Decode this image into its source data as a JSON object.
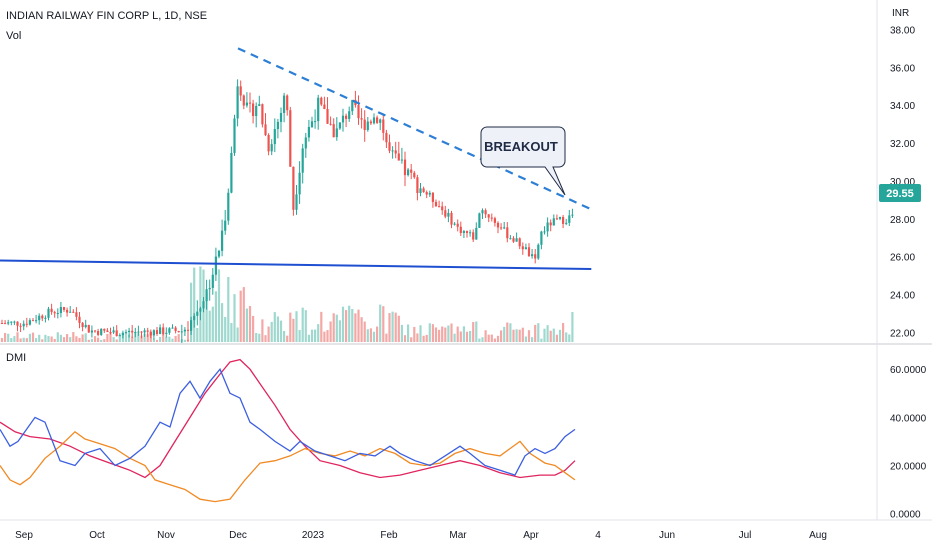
{
  "header": {
    "symbol": "INDIAN RAILWAY FIN CORP L, 1D, NSE",
    "volume_label": "Vol",
    "currency": "INR",
    "indicator_label": "DMI"
  },
  "colors": {
    "up": "#26a69a",
    "down": "#ef5350",
    "trendline": "#2d7fd5",
    "support": "#1e4fd1",
    "di_plus": "#3b5fe0",
    "di_minus": "#f08a24",
    "adx": "#e0245e",
    "price_badge": "#26a69a"
  },
  "annotation": {
    "text": "BREAKOUT"
  },
  "price_badge": "29.55",
  "chart_data": [
    {
      "type": "candlestick",
      "title": "INDIAN RAILWAY FIN CORP L, 1D, NSE",
      "ylabel": "INR",
      "ylim": [
        21.5,
        38.6
      ],
      "y_ticks": [
        "22.00",
        "24.00",
        "26.00",
        "28.00",
        "30.00",
        "32.00",
        "34.00",
        "36.00",
        "38.00"
      ],
      "x_ticks": [
        "Sep",
        "Oct",
        "Nov",
        "Dec",
        "2023",
        "Feb",
        "Mar",
        "Apr",
        "4",
        "Jun",
        "Jul",
        "Aug"
      ],
      "last_price": 29.55,
      "close_path": [
        [
          "Sep 1",
          22.5
        ],
        [
          "Sep 12",
          23.1
        ],
        [
          "Sep 20",
          23.2
        ],
        [
          "Sep 28",
          22.1
        ],
        [
          "Oct 10",
          22.0
        ],
        [
          "Oct 25",
          22.05
        ],
        [
          "Nov 8",
          22.1
        ],
        [
          "Nov 12",
          22.7
        ],
        [
          "Nov 18",
          24.2
        ],
        [
          "Nov 22",
          25.8
        ],
        [
          "Nov 25",
          27.5
        ],
        [
          "Nov 28",
          31.0
        ],
        [
          "Dec 1",
          35.5
        ],
        [
          "Dec 5",
          33.5
        ],
        [
          "Dec 9",
          34.2
        ],
        [
          "Dec 13",
          31.8
        ],
        [
          "Dec 18",
          33.5
        ],
        [
          "Dec 20",
          35.0
        ],
        [
          "Dec 23",
          28.5
        ],
        [
          "Dec 27",
          32.0
        ],
        [
          "Jan 3",
          34.0
        ],
        [
          "Jan 10",
          32.5
        ],
        [
          "Jan 16",
          34.0
        ],
        [
          "Jan 20",
          33.0
        ],
        [
          "Jan 27",
          33.5
        ],
        [
          "Feb 1",
          31.5
        ],
        [
          "Feb 8",
          30.5
        ],
        [
          "Feb 15",
          29.6
        ],
        [
          "Feb 22",
          28.8
        ],
        [
          "Mar 1",
          27.5
        ],
        [
          "Mar 8",
          27.0
        ],
        [
          "Mar 10",
          28.6
        ],
        [
          "Mar 15",
          28.0
        ],
        [
          "Mar 21",
          27.2
        ],
        [
          "Mar 28",
          26.5
        ],
        [
          "Apr 3",
          25.7
        ],
        [
          "Apr 5",
          27.2
        ],
        [
          "Apr 10",
          27.8
        ],
        [
          "Apr 17",
          28.0
        ],
        [
          "Apr 24",
          28.5
        ],
        [
          "Apr 28",
          29.55
        ]
      ],
      "volume_ticks_note": "volume histogram shown without axis scale",
      "resistance_trendline": [
        [
          "Dec 1",
          37.0
        ],
        [
          "Apr 28",
          28.5
        ]
      ],
      "support_line": [
        [
          "Aug 20",
          25.8
        ],
        [
          "Apr 28",
          25.35
        ]
      ]
    },
    {
      "type": "line",
      "title": "DMI",
      "ylim": [
        -1,
        68
      ],
      "y_ticks": [
        "0.0000",
        "20.0000",
        "40.0000",
        "60.0000"
      ],
      "series": [],
      "series_points": {
        "di_plus": [
          [
            0,
            35
          ],
          [
            10,
            28
          ],
          [
            18,
            30
          ],
          [
            35,
            40
          ],
          [
            45,
            38
          ],
          [
            60,
            22
          ],
          [
            75,
            20
          ],
          [
            85,
            25
          ],
          [
            100,
            27
          ],
          [
            115,
            20
          ],
          [
            130,
            23
          ],
          [
            145,
            28
          ],
          [
            160,
            38
          ],
          [
            170,
            36
          ],
          [
            180,
            50
          ],
          [
            190,
            55
          ],
          [
            200,
            48
          ],
          [
            210,
            55
          ],
          [
            220,
            60
          ],
          [
            230,
            50
          ],
          [
            240,
            48
          ],
          [
            250,
            38
          ],
          [
            260,
            35
          ],
          [
            275,
            30
          ],
          [
            290,
            26
          ],
          [
            300,
            30
          ],
          [
            315,
            26
          ],
          [
            330,
            24
          ],
          [
            345,
            22
          ],
          [
            360,
            25
          ],
          [
            375,
            24
          ],
          [
            390,
            28
          ],
          [
            400,
            25
          ],
          [
            415,
            22
          ],
          [
            430,
            20
          ],
          [
            445,
            24
          ],
          [
            460,
            28
          ],
          [
            470,
            25
          ],
          [
            485,
            20
          ],
          [
            500,
            18
          ],
          [
            515,
            16
          ],
          [
            525,
            24
          ],
          [
            535,
            27
          ],
          [
            545,
            25
          ],
          [
            555,
            27
          ],
          [
            565,
            32
          ],
          [
            575,
            35
          ]
        ],
        "di_minus": [
          [
            0,
            20
          ],
          [
            10,
            14
          ],
          [
            20,
            12
          ],
          [
            30,
            15
          ],
          [
            45,
            23
          ],
          [
            60,
            28
          ],
          [
            75,
            34
          ],
          [
            85,
            31
          ],
          [
            100,
            29
          ],
          [
            115,
            27
          ],
          [
            130,
            23
          ],
          [
            145,
            20
          ],
          [
            155,
            14
          ],
          [
            170,
            12
          ],
          [
            185,
            10
          ],
          [
            200,
            6
          ],
          [
            215,
            5
          ],
          [
            230,
            6
          ],
          [
            245,
            14
          ],
          [
            260,
            21
          ],
          [
            275,
            22
          ],
          [
            290,
            24
          ],
          [
            305,
            27
          ],
          [
            320,
            25
          ],
          [
            335,
            24
          ],
          [
            350,
            26
          ],
          [
            365,
            24
          ],
          [
            380,
            27
          ],
          [
            395,
            25
          ],
          [
            410,
            21
          ],
          [
            425,
            20
          ],
          [
            440,
            21
          ],
          [
            455,
            25
          ],
          [
            470,
            27
          ],
          [
            485,
            25
          ],
          [
            500,
            24
          ],
          [
            510,
            27
          ],
          [
            520,
            30
          ],
          [
            530,
            25
          ],
          [
            545,
            21
          ],
          [
            555,
            20
          ],
          [
            565,
            17
          ],
          [
            575,
            14
          ]
        ],
        "adx": [
          [
            0,
            38
          ],
          [
            15,
            34
          ],
          [
            30,
            32
          ],
          [
            50,
            31
          ],
          [
            70,
            28
          ],
          [
            90,
            24
          ],
          [
            110,
            21
          ],
          [
            130,
            18
          ],
          [
            145,
            15
          ],
          [
            160,
            20
          ],
          [
            175,
            30
          ],
          [
            190,
            40
          ],
          [
            205,
            50
          ],
          [
            220,
            58
          ],
          [
            230,
            63
          ],
          [
            240,
            64
          ],
          [
            250,
            60
          ],
          [
            260,
            54
          ],
          [
            275,
            45
          ],
          [
            290,
            35
          ],
          [
            305,
            28
          ],
          [
            320,
            22
          ],
          [
            340,
            20
          ],
          [
            360,
            17
          ],
          [
            380,
            15
          ],
          [
            400,
            16
          ],
          [
            420,
            18
          ],
          [
            440,
            20
          ],
          [
            460,
            22
          ],
          [
            480,
            20
          ],
          [
            500,
            17
          ],
          [
            520,
            15
          ],
          [
            540,
            16
          ],
          [
            555,
            16
          ],
          [
            565,
            18
          ],
          [
            575,
            22
          ]
        ]
      }
    }
  ]
}
